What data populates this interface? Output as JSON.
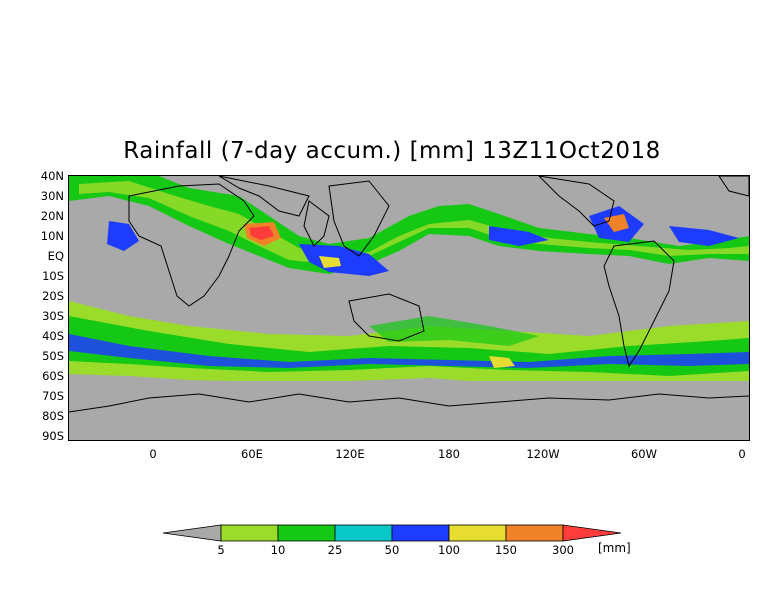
{
  "title": "Rainfall (7-day accum.) [mm] 13Z11Oct2018",
  "lat_labels": [
    "40N",
    "30N",
    "20N",
    "10N",
    "EQ",
    "10S",
    "20S",
    "30S",
    "40S",
    "50S",
    "60S",
    "70S",
    "80S",
    "90S"
  ],
  "lon_labels": [
    "0",
    "60E",
    "120E",
    "180",
    "120W",
    "60W",
    "0"
  ],
  "legend": {
    "boundaries": [
      "5",
      "10",
      "25",
      "50",
      "100",
      "150",
      "300"
    ],
    "units": "[mm]",
    "colors": [
      "#a9a9a9",
      "#9bdc2a",
      "#14c814",
      "#0ac8c8",
      "#1e3cff",
      "#e6dc32",
      "#f08228",
      "#ff3c3c"
    ]
  },
  "colors": {
    "ocean_dry": "#a9a9a9",
    "light": "#9bdc2a",
    "moderate": "#14c814",
    "heavy": "#0ac8c8",
    "very_heavy": "#1e3cff",
    "intense": "#e6dc32",
    "extreme": "#f08228",
    "max": "#ff3c3c"
  }
}
